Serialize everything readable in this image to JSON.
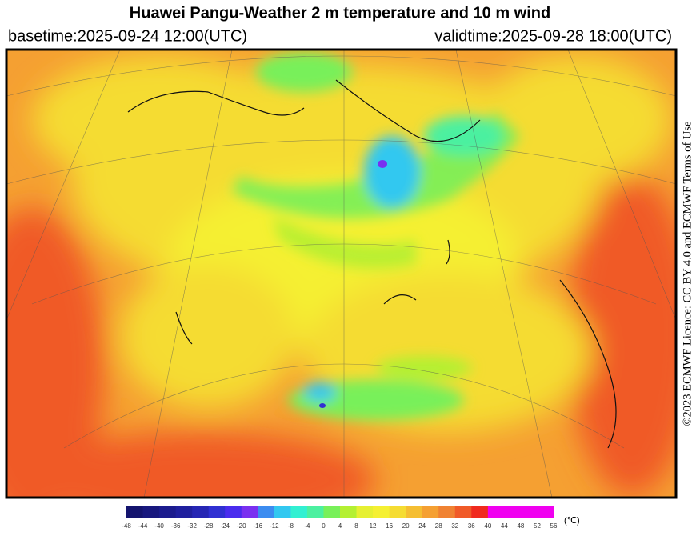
{
  "header": {
    "title": "Huawei Pangu-Weather  2 m temperature and 10 m wind",
    "basetime": "basetime:2025-09-24 12:00(UTC)",
    "validtime": "validtime:2025-09-28 18:00(UTC)"
  },
  "licence": "©2023 ECMWF Licence: CC BY 4.0 and ECMWF Terms of Use",
  "colorbar": {
    "ticks": [
      -48,
      -44,
      -40,
      -36,
      -32,
      -28,
      -24,
      -20,
      -16,
      -12,
      -8,
      -4,
      0,
      4,
      8,
      12,
      16,
      20,
      24,
      28,
      32,
      36,
      40,
      44,
      48,
      52,
      56
    ],
    "colors": [
      "#14146e",
      "#18187e",
      "#1c1c8e",
      "#20209e",
      "#2626b4",
      "#3030d2",
      "#4a2cee",
      "#7a30f0",
      "#3c8cf0",
      "#32c8f0",
      "#32f0d2",
      "#4cf0a0",
      "#78f05a",
      "#b4f032",
      "#e6f032",
      "#f5f032",
      "#f5dc32",
      "#f5be32",
      "#f5a032",
      "#f08232",
      "#f05a28",
      "#f02a1e",
      "#f000f0",
      "#f000f0",
      "#f000f0",
      "#f000f0"
    ],
    "unit": "(℃)"
  }
}
